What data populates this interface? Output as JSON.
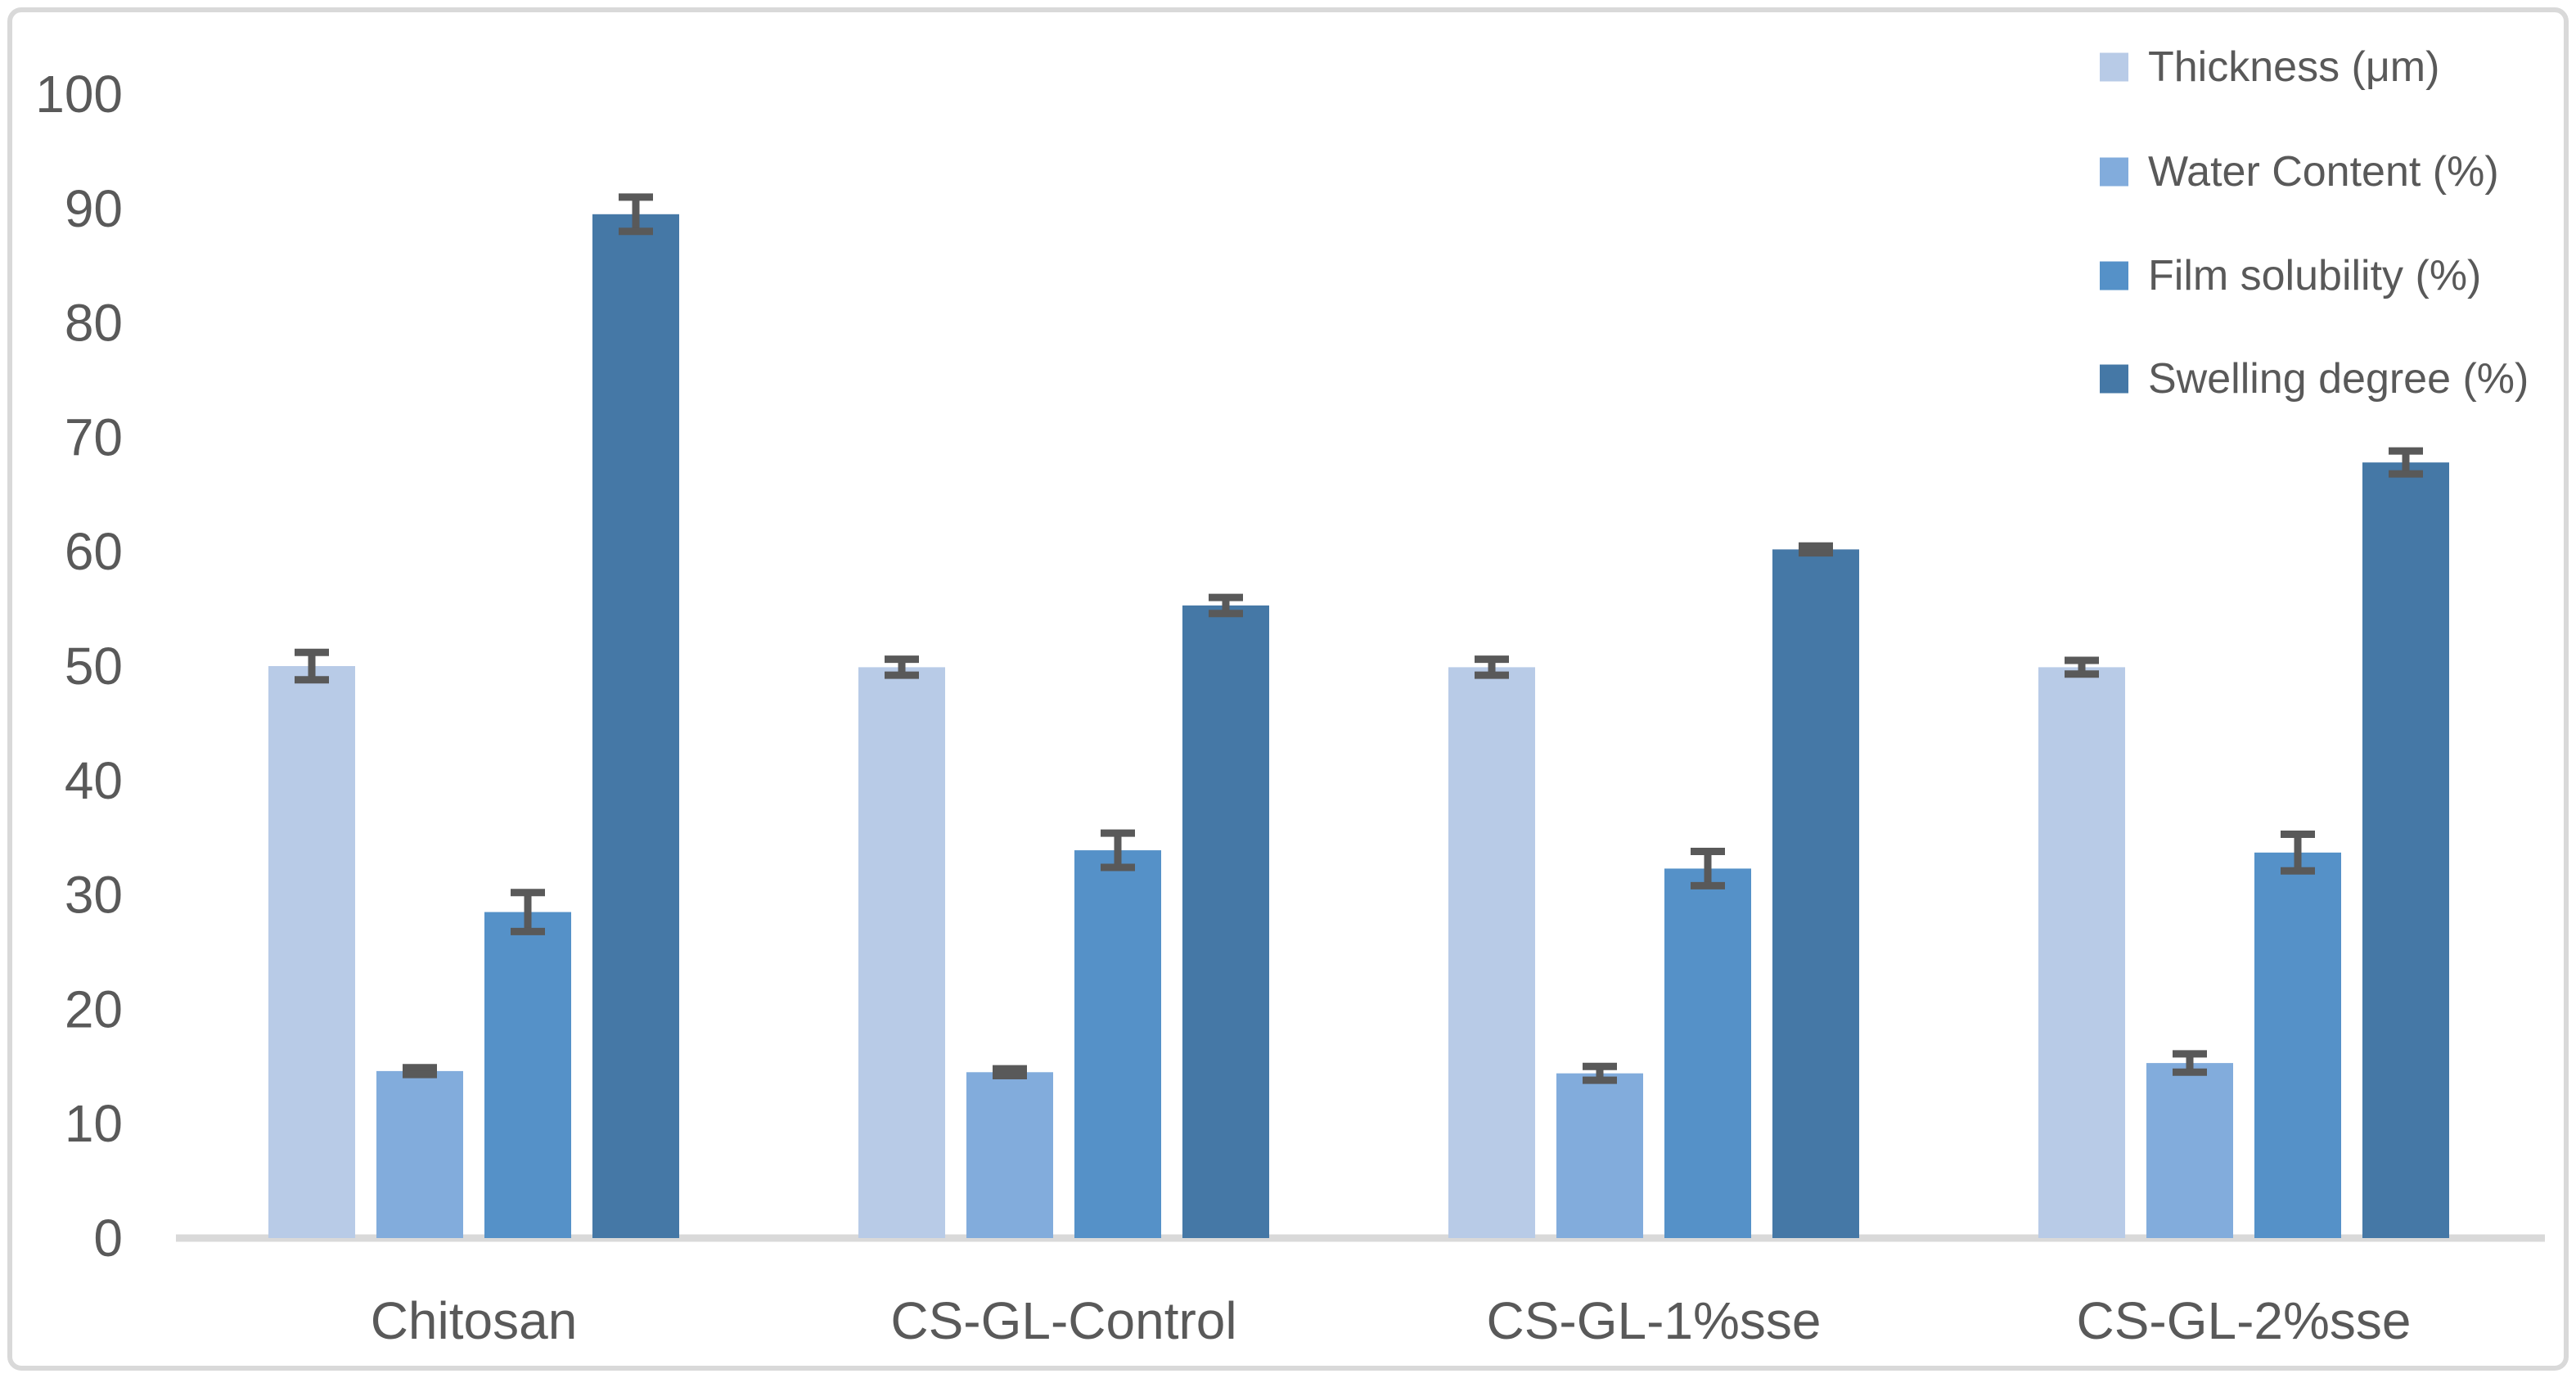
{
  "chart_data": {
    "type": "bar",
    "title": "",
    "xlabel": "",
    "ylabel": "",
    "categories": [
      "Chitosan",
      "CS-GL-Control",
      "CS-GL-1%sse",
      "CS-GL-2%sse"
    ],
    "series": [
      {
        "name": "Thickness (μm)",
        "color": "#b8cbe7",
        "values": [
          50.0,
          49.9,
          49.9,
          49.9
        ],
        "errors": [
          1.2,
          0.7,
          0.7,
          0.6
        ]
      },
      {
        "name": "Water Content (%)",
        "color": "#82acdc",
        "values": [
          14.6,
          14.5,
          14.4,
          15.3
        ],
        "errors": [
          0.3,
          0.3,
          0.6,
          0.8
        ]
      },
      {
        "name": "Film solubility (%)",
        "color": "#5591c8",
        "values": [
          28.5,
          33.9,
          32.3,
          33.7
        ],
        "errors": [
          1.7,
          1.5,
          1.5,
          1.6
        ]
      },
      {
        "name": "Swelling degree (%)",
        "color": "#4578a6",
        "values": [
          89.5,
          55.3,
          60.2,
          67.8
        ],
        "errors": [
          1.5,
          0.7,
          0.3,
          1.0
        ]
      }
    ],
    "ylim": [
      0,
      100
    ],
    "yticks": [
      0,
      10,
      20,
      30,
      40,
      50,
      60,
      70,
      80,
      90,
      100
    ],
    "grid": false,
    "error_bars": true,
    "legend_position": "top-right"
  },
  "style": {
    "background": "#ffffff",
    "border_color": "#d9d9d9",
    "axis_line_color": "#d9d9d9",
    "text_color": "#595959",
    "error_bar_color": "#595959"
  }
}
